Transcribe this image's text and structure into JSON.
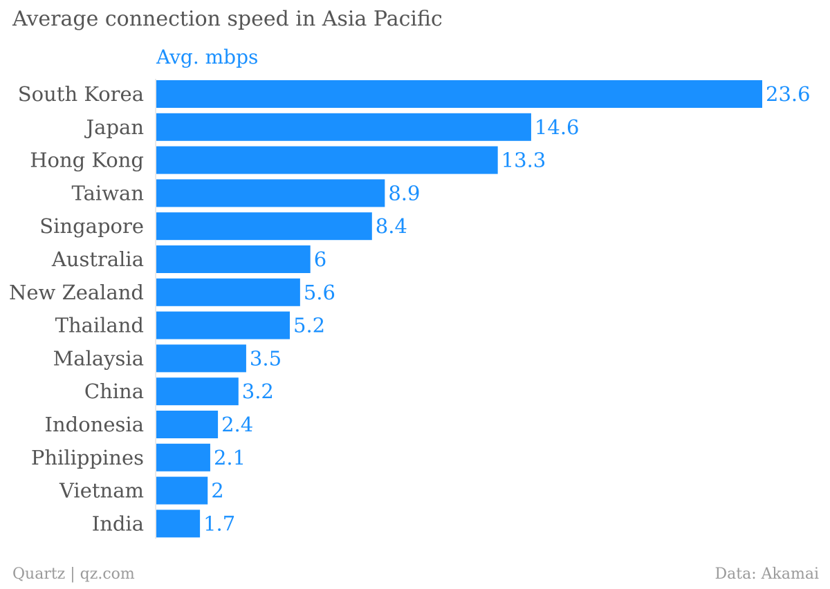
{
  "title": "Average connection speed in Asia Pacific",
  "footer": {
    "source_left": "Quartz | qz.com",
    "source_right": "Data: Akamai"
  },
  "colors": {
    "bar": "#1a90ff",
    "label_text": "#555555",
    "value_text": "#1a90ff",
    "footer_text": "#9a9a9a"
  },
  "chart_data": {
    "type": "bar",
    "orientation": "horizontal",
    "title": "Average connection speed in Asia Pacific",
    "categories": [
      "South Korea",
      "Japan",
      "Hong Kong",
      "Taiwan",
      "Singapore",
      "Australia",
      "New Zealand",
      "Thailand",
      "Malaysia",
      "China",
      "Indonesia",
      "Philippines",
      "Vietnam",
      "India"
    ],
    "series": [
      {
        "name": "Avg. mbps",
        "values": [
          23.6,
          14.6,
          13.3,
          8.9,
          8.4,
          6,
          5.6,
          5.2,
          3.5,
          3.2,
          2.4,
          2.1,
          2,
          1.7
        ]
      }
    ],
    "value_labels": [
      "23.6",
      "14.6",
      "13.3",
      "8.9",
      "8.4",
      "6",
      "5.6",
      "5.2",
      "3.5",
      "3.2",
      "2.4",
      "2.1",
      "2",
      "1.7"
    ],
    "xlim": [
      0,
      23.6
    ],
    "grid": false,
    "legend": "top-left"
  }
}
